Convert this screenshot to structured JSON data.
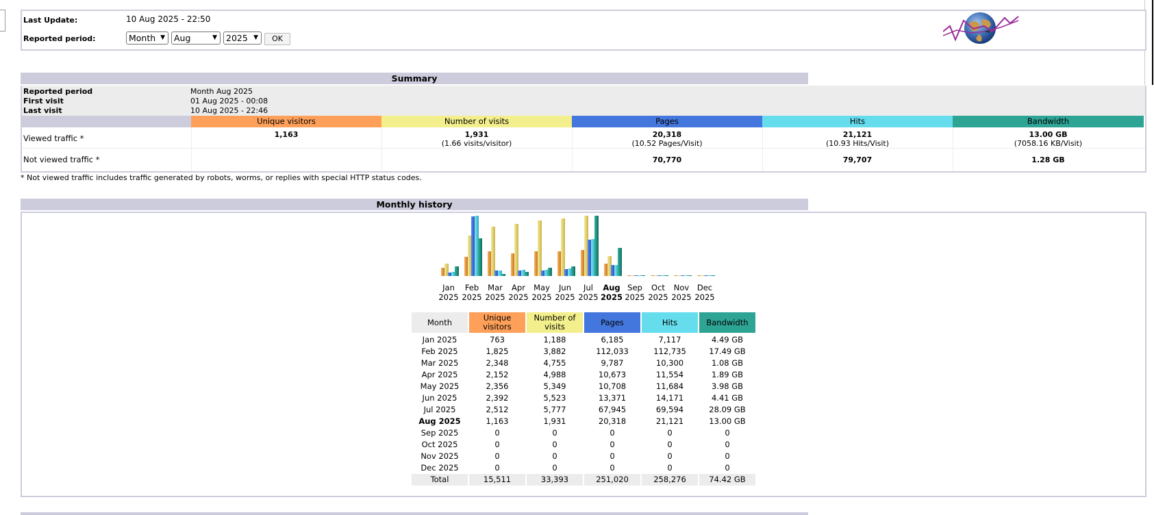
{
  "colors": {
    "unique": "#ffa05a",
    "visits": "#f2ef8c",
    "pages": "#4477dd",
    "hits": "#66dded",
    "bandwidth": "#2ea495",
    "header": "#ccccdd"
  },
  "header": {
    "last_update_label": "Last Update:",
    "last_update_value": "10 Aug 2025 - 22:50",
    "period_label": "Reported period:",
    "period_type": "Month",
    "month": "Aug",
    "year": "2025",
    "ok_label": "OK",
    "logo_icon": "globe-logo-icon"
  },
  "summary": {
    "title": "Summary",
    "reported_period_label": "Reported period",
    "reported_period_value": "Month Aug 2025",
    "first_visit_label": "First visit",
    "first_visit_value": "01 Aug 2025 - 00:08",
    "last_visit_label": "Last visit",
    "last_visit_value": "10 Aug 2025 - 22:46",
    "columns": [
      "Unique visitors",
      "Number of visits",
      "Pages",
      "Hits",
      "Bandwidth"
    ],
    "viewed_label": "Viewed traffic *",
    "viewed": {
      "unique": "1,163",
      "visits": "1,931",
      "visits_sub": "(1.66 visits/visitor)",
      "pages": "20,318",
      "pages_sub": "(10.52 Pages/Visit)",
      "hits": "21,121",
      "hits_sub": "(10.93 Hits/Visit)",
      "bandwidth": "13.00 GB",
      "bandwidth_sub": "(7058.16 KB/Visit)"
    },
    "not_viewed_label": "Not viewed traffic *",
    "not_viewed": {
      "pages": "70,770",
      "hits": "79,707",
      "bandwidth": "1.28 GB"
    },
    "note": "* Not viewed traffic includes traffic generated by robots, worms, or replies with special HTTP status codes."
  },
  "monthly": {
    "title": "Monthly history",
    "headers": [
      "Month",
      "Unique visitors",
      "Number of visits",
      "Pages",
      "Hits",
      "Bandwidth"
    ],
    "rows": [
      {
        "month": "Jan 2025",
        "unique": "763",
        "visits": "1,188",
        "pages": "6,185",
        "hits": "7,117",
        "bandwidth": "4.49 GB"
      },
      {
        "month": "Feb 2025",
        "unique": "1,825",
        "visits": "3,882",
        "pages": "112,033",
        "hits": "112,735",
        "bandwidth": "17.49 GB"
      },
      {
        "month": "Mar 2025",
        "unique": "2,348",
        "visits": "4,755",
        "pages": "9,787",
        "hits": "10,300",
        "bandwidth": "1.08 GB"
      },
      {
        "month": "Apr 2025",
        "unique": "2,152",
        "visits": "4,988",
        "pages": "10,673",
        "hits": "11,554",
        "bandwidth": "1.89 GB"
      },
      {
        "month": "May 2025",
        "unique": "2,356",
        "visits": "5,349",
        "pages": "10,708",
        "hits": "11,684",
        "bandwidth": "3.98 GB"
      },
      {
        "month": "Jun 2025",
        "unique": "2,392",
        "visits": "5,523",
        "pages": "13,371",
        "hits": "14,171",
        "bandwidth": "4.41 GB"
      },
      {
        "month": "Jul 2025",
        "unique": "2,512",
        "visits": "5,777",
        "pages": "67,945",
        "hits": "69,594",
        "bandwidth": "28.09 GB"
      },
      {
        "month": "Aug 2025",
        "unique": "1,163",
        "visits": "1,931",
        "pages": "20,318",
        "hits": "21,121",
        "bandwidth": "13.00 GB"
      },
      {
        "month": "Sep 2025",
        "unique": "0",
        "visits": "0",
        "pages": "0",
        "hits": "0",
        "bandwidth": "0"
      },
      {
        "month": "Oct 2025",
        "unique": "0",
        "visits": "0",
        "pages": "0",
        "hits": "0",
        "bandwidth": "0"
      },
      {
        "month": "Nov 2025",
        "unique": "0",
        "visits": "0",
        "pages": "0",
        "hits": "0",
        "bandwidth": "0"
      },
      {
        "month": "Dec 2025",
        "unique": "0",
        "visits": "0",
        "pages": "0",
        "hits": "0",
        "bandwidth": "0"
      }
    ],
    "total": {
      "month": "Total",
      "unique": "15,511",
      "visits": "33,393",
      "pages": "251,020",
      "hits": "258,276",
      "bandwidth": "74.42 GB"
    }
  },
  "chart_data": {
    "type": "bar",
    "categories": [
      "Jan 2025",
      "Feb 2025",
      "Mar 2025",
      "Apr 2025",
      "May 2025",
      "Jun 2025",
      "Jul 2025",
      "Aug 2025",
      "Sep 2025",
      "Oct 2025",
      "Nov 2025",
      "Dec 2025"
    ],
    "month_labels": [
      "Jan",
      "Feb",
      "Mar",
      "Apr",
      "May",
      "Jun",
      "Jul",
      "Aug",
      "Sep",
      "Oct",
      "Nov",
      "Dec"
    ],
    "year_label": "2025",
    "highlight": "Aug",
    "series": [
      {
        "name": "Unique visitors",
        "values": [
          763,
          1825,
          2348,
          2152,
          2356,
          2392,
          2512,
          1163,
          0,
          0,
          0,
          0
        ]
      },
      {
        "name": "Number of visits",
        "values": [
          1188,
          3882,
          4755,
          4988,
          5349,
          5523,
          5777,
          1931,
          0,
          0,
          0,
          0
        ]
      },
      {
        "name": "Pages",
        "values": [
          6185,
          112033,
          9787,
          10673,
          10708,
          13371,
          67945,
          20318,
          0,
          0,
          0,
          0
        ]
      },
      {
        "name": "Hits",
        "values": [
          7117,
          112735,
          10300,
          11554,
          11684,
          14171,
          69594,
          21121,
          0,
          0,
          0,
          0
        ]
      },
      {
        "name": "Bandwidth (GB)",
        "values": [
          4.49,
          17.49,
          1.08,
          1.89,
          3.98,
          4.41,
          28.09,
          13.0,
          0,
          0,
          0,
          0
        ]
      }
    ]
  }
}
